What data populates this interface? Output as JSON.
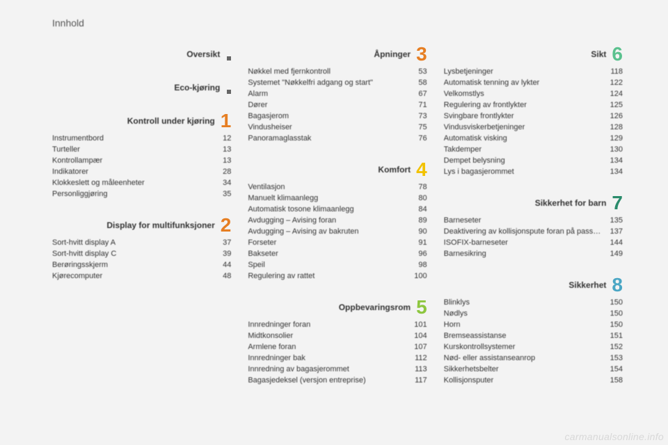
{
  "page_title": "Innhold",
  "watermark": "carmanualsonline.info",
  "default_rule_color": "#bdbdbd",
  "columns": [
    [
      {
        "title": "Oversikt",
        "rule_color": "#bdbdbd",
        "marker": "dot"
      },
      {
        "title": "Eco-kjøring",
        "rule_color": "#a9d7a4",
        "marker": "dot"
      },
      {
        "title": "Kontroll under kjøring",
        "rule_color": "#e74c1a",
        "num": "1",
        "num_color": "#e67e22",
        "entries": [
          {
            "label": "Instrumentbord",
            "page": "12"
          },
          {
            "label": "Turteller",
            "page": "13"
          },
          {
            "label": "Kontrollampær",
            "page": "13"
          },
          {
            "label": "Indikatorer",
            "page": "28"
          },
          {
            "label": "Klokkeslett og måleenheter",
            "page": "34"
          },
          {
            "label": "Personliggjøring",
            "page": "35"
          }
        ]
      },
      {
        "title": "Display for multifunksjoner",
        "rule_color": "#e67e22",
        "num": "2",
        "num_color": "#e67e22",
        "entries": [
          {
            "label": "Sort-hvitt display A",
            "page": "37"
          },
          {
            "label": "Sort-hvitt display C",
            "page": "39"
          },
          {
            "label": "Berøringsskjerm",
            "page": "44"
          },
          {
            "label": "Kjørecomputer",
            "page": "48"
          }
        ]
      }
    ],
    [
      {
        "title": "Åpninger",
        "rule_color": "#e67e22",
        "num": "3",
        "num_color": "#e67e22",
        "entries": [
          {
            "label": "Nøkkel med fjernkontroll",
            "page": "53"
          },
          {
            "label": "Systemet \"Nøkkelfri adgang og start\"",
            "page": "58"
          },
          {
            "label": "Alarm",
            "page": "67"
          },
          {
            "label": "Dører",
            "page": "71"
          },
          {
            "label": "Bagasjerom",
            "page": "73"
          },
          {
            "label": "Vindusheiser",
            "page": "75"
          },
          {
            "label": "Panoramaglasstak",
            "page": "76"
          }
        ]
      },
      {
        "title": "Komfort",
        "rule_color": "#f2c200",
        "num": "4",
        "num_color": "#f2c200",
        "entries": [
          {
            "label": "Ventilasjon",
            "page": "78"
          },
          {
            "label": "Manuelt klimaanlegg",
            "page": "80"
          },
          {
            "label": "Automatisk tosone klimaanlegg",
            "page": "84"
          },
          {
            "label": "Avdugging – Avising foran",
            "page": "89"
          },
          {
            "label": "Avdugging – Avising av bakruten",
            "page": "90"
          },
          {
            "label": "Forseter",
            "page": "91"
          },
          {
            "label": "Bakseter",
            "page": "96"
          },
          {
            "label": "Speil",
            "page": "98"
          },
          {
            "label": "Regulering av rattet",
            "page": "100"
          }
        ]
      },
      {
        "title": "Oppbevaringsrom",
        "rule_color": "#8dc63f",
        "num": "5",
        "num_color": "#8dc63f",
        "entries": [
          {
            "label": "Innredninger foran",
            "page": "101"
          },
          {
            "label": "Midtkonsolier",
            "page": "104"
          },
          {
            "label": "Armlene foran",
            "page": "107"
          },
          {
            "label": "Innredninger bak",
            "page": "112"
          },
          {
            "label": "Innredning av bagasjerommet",
            "page": "113"
          },
          {
            "label": "Bagasjedeksel (versjon entreprise)",
            "page": "117"
          }
        ]
      }
    ],
    [
      {
        "title": "Sikt",
        "rule_color": "#5ac18e",
        "num": "6",
        "num_color": "#5ac18e",
        "entries": [
          {
            "label": "Lysbetjeninger",
            "page": "118"
          },
          {
            "label": "Automatisk tenning av lykter",
            "page": "122"
          },
          {
            "label": "Velkomstlys",
            "page": "124"
          },
          {
            "label": "Regulering av frontlykter",
            "page": "125"
          },
          {
            "label": "Svingbare frontlykter",
            "page": "126"
          },
          {
            "label": "Vindusviskerbetjeninger",
            "page": "128"
          },
          {
            "label": "Automatisk visking",
            "page": "129"
          },
          {
            "label": "Takdemper",
            "page": "130"
          },
          {
            "label": "Dempet belysning",
            "page": "134"
          },
          {
            "label": "Lys i bagasjerommet",
            "page": "134"
          }
        ]
      },
      {
        "title": "Sikkerhet for barn",
        "rule_color": "#2a8b6b",
        "num": "7",
        "num_color": "#2a8b6b",
        "entries": [
          {
            "label": "Barneseter",
            "page": "135"
          },
          {
            "label": "Deaktivering av kollisjonspute foran på passasjerplassen",
            "page": "137"
          },
          {
            "label": "ISOFIX-barneseter",
            "page": "144"
          },
          {
            "label": "Barnesikring",
            "page": "149"
          }
        ]
      },
      {
        "title": "Sikkerhet",
        "rule_color": "#4aa6c4",
        "num": "8",
        "num_color": "#4aa6c4",
        "entries": [
          {
            "label": "Blinklys",
            "page": "150"
          },
          {
            "label": "Nødlys",
            "page": "150"
          },
          {
            "label": "Horn",
            "page": "150"
          },
          {
            "label": "Bremseassistanse",
            "page": "151"
          },
          {
            "label": "Kurskontrollsystemer",
            "page": "152"
          },
          {
            "label": "Nød- eller assistanseanrop",
            "page": "153"
          },
          {
            "label": "Sikkerhetsbelter",
            "page": "154"
          },
          {
            "label": "Kollisjonsputer",
            "page": "158"
          }
        ]
      }
    ]
  ]
}
